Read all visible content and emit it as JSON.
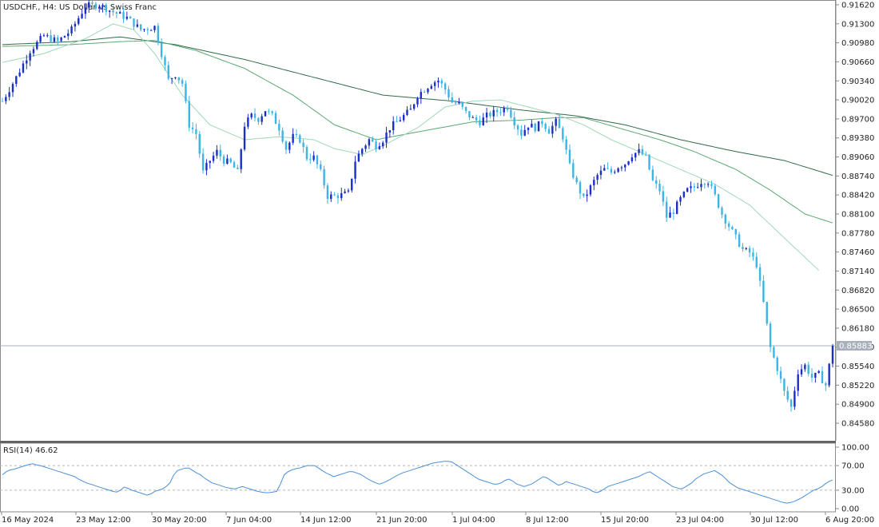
{
  "chart_data": [
    {
      "type": "candlestick",
      "title": "USDCHF., H4:  US Dollar vs Swiss Franc",
      "current_price": "0.85883",
      "colors": {
        "bull": "#1a2ec8",
        "bear": "#3cb4e6",
        "ma_fast": "#9fd8b8",
        "ma_mid": "#5aa872",
        "ma_slow": "#2f6b49",
        "price_line": "#a8b0bc"
      },
      "ylim": [
        0.8426,
        0.9178
      ],
      "y_ticks": [
        "0.91620",
        "0.91300",
        "0.90980",
        "0.90660",
        "0.90340",
        "0.90020",
        "0.89700",
        "0.89380",
        "0.89060",
        "0.88740",
        "0.88420",
        "0.88100",
        "0.87780",
        "0.87460",
        "0.87140",
        "0.86820",
        "0.86500",
        "0.86180",
        "0.85860",
        "0.85540",
        "0.85220",
        "0.84900",
        "0.84580"
      ],
      "x_ticks": [
        "16 May 2024",
        "23 May 12:00",
        "30 May 20:00",
        "7 Jun 04:00",
        "14 Jun 12:00",
        "21 Jun 20:00",
        "1 Jul 04:00",
        "8 Jul 12:00",
        "15 Jul 20:00",
        "23 Jul 04:00",
        "30 Jul 12:00",
        "6 Aug 20:00"
      ],
      "close_path": [
        [
          0,
          0.9
        ],
        [
          4,
          0.904
        ],
        [
          8,
          0.9085
        ],
        [
          12,
          0.911
        ],
        [
          16,
          0.91
        ],
        [
          20,
          0.912
        ],
        [
          24,
          0.916
        ],
        [
          28,
          0.9162
        ],
        [
          32,
          0.915
        ],
        [
          36,
          0.914
        ],
        [
          40,
          0.912
        ],
        [
          44,
          0.9125
        ],
        [
          46,
          0.908
        ],
        [
          48,
          0.9035
        ],
        [
          50,
          0.9045
        ],
        [
          52,
          0.903
        ],
        [
          54,
          0.896
        ],
        [
          56,
          0.8945
        ],
        [
          58,
          0.888
        ],
        [
          60,
          0.89
        ],
        [
          62,
          0.8915
        ],
        [
          64,
          0.89
        ],
        [
          66,
          0.8895
        ],
        [
          68,
          0.888
        ],
        [
          70,
          0.896
        ],
        [
          72,
          0.8975
        ],
        [
          74,
          0.897
        ],
        [
          76,
          0.8985
        ],
        [
          78,
          0.8975
        ],
        [
          80,
          0.8955
        ],
        [
          82,
          0.892
        ],
        [
          84,
          0.894
        ],
        [
          86,
          0.8935
        ],
        [
          88,
          0.8905
        ],
        [
          90,
          0.8905
        ],
        [
          92,
          0.888
        ],
        [
          94,
          0.884
        ],
        [
          96,
          0.884
        ],
        [
          98,
          0.8842
        ],
        [
          100,
          0.8845
        ],
        [
          102,
          0.89
        ],
        [
          104,
          0.892
        ],
        [
          106,
          0.8935
        ],
        [
          108,
          0.8925
        ],
        [
          110,
          0.8935
        ],
        [
          112,
          0.8955
        ],
        [
          114,
          0.8965
        ],
        [
          116,
          0.8975
        ],
        [
          118,
          0.8985
        ],
        [
          120,
          0.901
        ],
        [
          122,
          0.902
        ],
        [
          124,
          0.903
        ],
        [
          126,
          0.9035
        ],
        [
          128,
          0.902
        ],
        [
          130,
          0.8998
        ],
        [
          132,
          0.8995
        ],
        [
          134,
          0.898
        ],
        [
          136,
          0.897
        ],
        [
          138,
          0.8965
        ],
        [
          140,
          0.8975
        ],
        [
          142,
          0.898
        ],
        [
          144,
          0.8985
        ],
        [
          146,
          0.899
        ],
        [
          148,
          0.8965
        ],
        [
          150,
          0.8945
        ],
        [
          152,
          0.896
        ],
        [
          154,
          0.8955
        ],
        [
          156,
          0.8965
        ],
        [
          158,
          0.895
        ],
        [
          160,
          0.8965
        ],
        [
          162,
          0.894
        ],
        [
          164,
          0.889
        ],
        [
          166,
          0.886
        ],
        [
          168,
          0.8835
        ],
        [
          170,
          0.8855
        ],
        [
          172,
          0.8875
        ],
        [
          174,
          0.8885
        ],
        [
          176,
          0.888
        ],
        [
          178,
          0.889
        ],
        [
          180,
          0.8895
        ],
        [
          182,
          0.891
        ],
        [
          184,
          0.8915
        ],
        [
          186,
          0.8905
        ],
        [
          188,
          0.8865
        ],
        [
          190,
          0.885
        ],
        [
          192,
          0.8805
        ],
        [
          194,
          0.8815
        ],
        [
          196,
          0.8835
        ],
        [
          198,
          0.885
        ],
        [
          200,
          0.8855
        ],
        [
          202,
          0.8865
        ],
        [
          204,
          0.8865
        ],
        [
          206,
          0.884
        ],
        [
          208,
          0.881
        ],
        [
          210,
          0.879
        ],
        [
          212,
          0.877
        ],
        [
          214,
          0.875
        ],
        [
          216,
          0.8745
        ],
        [
          218,
          0.8725
        ],
        [
          220,
          0.866
        ],
        [
          222,
          0.8585
        ],
        [
          224,
          0.855
        ],
        [
          226,
          0.851
        ],
        [
          228,
          0.8485
        ],
        [
          230,
          0.8545
        ],
        [
          232,
          0.8555
        ],
        [
          234,
          0.8535
        ],
        [
          236,
          0.854
        ],
        [
          238,
          0.8522
        ],
        [
          240,
          0.8588
        ]
      ],
      "ma_fast": [
        [
          0,
          0.9065
        ],
        [
          12,
          0.908
        ],
        [
          24,
          0.9105
        ],
        [
          32,
          0.913
        ],
        [
          38,
          0.912
        ],
        [
          44,
          0.908
        ],
        [
          52,
          0.901
        ],
        [
          60,
          0.896
        ],
        [
          70,
          0.8935
        ],
        [
          80,
          0.894
        ],
        [
          90,
          0.8935
        ],
        [
          96,
          0.892
        ],
        [
          104,
          0.891
        ],
        [
          110,
          0.8925
        ],
        [
          120,
          0.8955
        ],
        [
          128,
          0.899
        ],
        [
          136,
          0.9
        ],
        [
          144,
          0.9002
        ],
        [
          152,
          0.899
        ],
        [
          160,
          0.8978
        ],
        [
          168,
          0.896
        ],
        [
          176,
          0.8935
        ],
        [
          186,
          0.891
        ],
        [
          196,
          0.8885
        ],
        [
          206,
          0.886
        ],
        [
          216,
          0.8825
        ],
        [
          226,
          0.877
        ],
        [
          236,
          0.8715
        ]
      ],
      "ma_mid": [
        [
          0,
          0.9092
        ],
        [
          20,
          0.9095
        ],
        [
          34,
          0.91
        ],
        [
          44,
          0.9102
        ],
        [
          56,
          0.9085
        ],
        [
          70,
          0.9055
        ],
        [
          84,
          0.901
        ],
        [
          96,
          0.896
        ],
        [
          108,
          0.8935
        ],
        [
          120,
          0.8948
        ],
        [
          136,
          0.8965
        ],
        [
          150,
          0.8968
        ],
        [
          160,
          0.8972
        ],
        [
          168,
          0.8972
        ],
        [
          178,
          0.8955
        ],
        [
          190,
          0.8935
        ],
        [
          200,
          0.8915
        ],
        [
          212,
          0.8885
        ],
        [
          222,
          0.885
        ],
        [
          232,
          0.881
        ],
        [
          240,
          0.8795
        ]
      ],
      "ma_slow": [
        [
          0,
          0.9095
        ],
        [
          20,
          0.91
        ],
        [
          34,
          0.9108
        ],
        [
          50,
          0.9095
        ],
        [
          70,
          0.907
        ],
        [
          90,
          0.904
        ],
        [
          110,
          0.901
        ],
        [
          130,
          0.9
        ],
        [
          150,
          0.8985
        ],
        [
          166,
          0.8975
        ],
        [
          180,
          0.896
        ],
        [
          196,
          0.8935
        ],
        [
          212,
          0.8915
        ],
        [
          226,
          0.89
        ],
        [
          240,
          0.8875
        ]
      ]
    },
    {
      "type": "line",
      "title": "RSI(14) 46.62",
      "ylim": [
        0,
        100
      ],
      "y_ticks": [
        "100.00",
        "70.00",
        "30.00",
        "0.00"
      ],
      "levels": [
        70,
        30
      ],
      "values": [
        55,
        60,
        63,
        64,
        66,
        68,
        70,
        72,
        73,
        71,
        70,
        68,
        66,
        64,
        62,
        60,
        58,
        56,
        54,
        52,
        48,
        45,
        42,
        40,
        38,
        36,
        34,
        32,
        30,
        28,
        27,
        30,
        35,
        33,
        30,
        28,
        26,
        24,
        22,
        24,
        28,
        30,
        32,
        36,
        42,
        55,
        62,
        64,
        66,
        66,
        62,
        58,
        55,
        50,
        46,
        42,
        40,
        38,
        36,
        34,
        33,
        32,
        34,
        36,
        34,
        32,
        30,
        28,
        27,
        26,
        26,
        27,
        28,
        40,
        55,
        60,
        63,
        65,
        66,
        68,
        70,
        70,
        70,
        66,
        62,
        58,
        55,
        52,
        54,
        56,
        58,
        60,
        60,
        58,
        56,
        52,
        48,
        45,
        42,
        40,
        42,
        45,
        48,
        52,
        55,
        58,
        60,
        62,
        64,
        66,
        68,
        70,
        72,
        74,
        75,
        76,
        77,
        77,
        76,
        72,
        68,
        64,
        60,
        56,
        52,
        48,
        46,
        44,
        42,
        40,
        40,
        42,
        46,
        48,
        45,
        40,
        38,
        36,
        38,
        40,
        44,
        48,
        52,
        50,
        46,
        42,
        38,
        40,
        44,
        42,
        40,
        38,
        36,
        34,
        32,
        28,
        26,
        28,
        32,
        36,
        38,
        40,
        42,
        44,
        46,
        48,
        50,
        52,
        55,
        58,
        60,
        56,
        52,
        48,
        44,
        40,
        36,
        34,
        32,
        34,
        38,
        42,
        48,
        52,
        56,
        58,
        60,
        62,
        58,
        54,
        48,
        42,
        38,
        34,
        32,
        30,
        28,
        26,
        24,
        22,
        20,
        18,
        16,
        14,
        12,
        10,
        9,
        10,
        12,
        15,
        18,
        22,
        26,
        30,
        32,
        35,
        40,
        44,
        46.62
      ]
    }
  ]
}
